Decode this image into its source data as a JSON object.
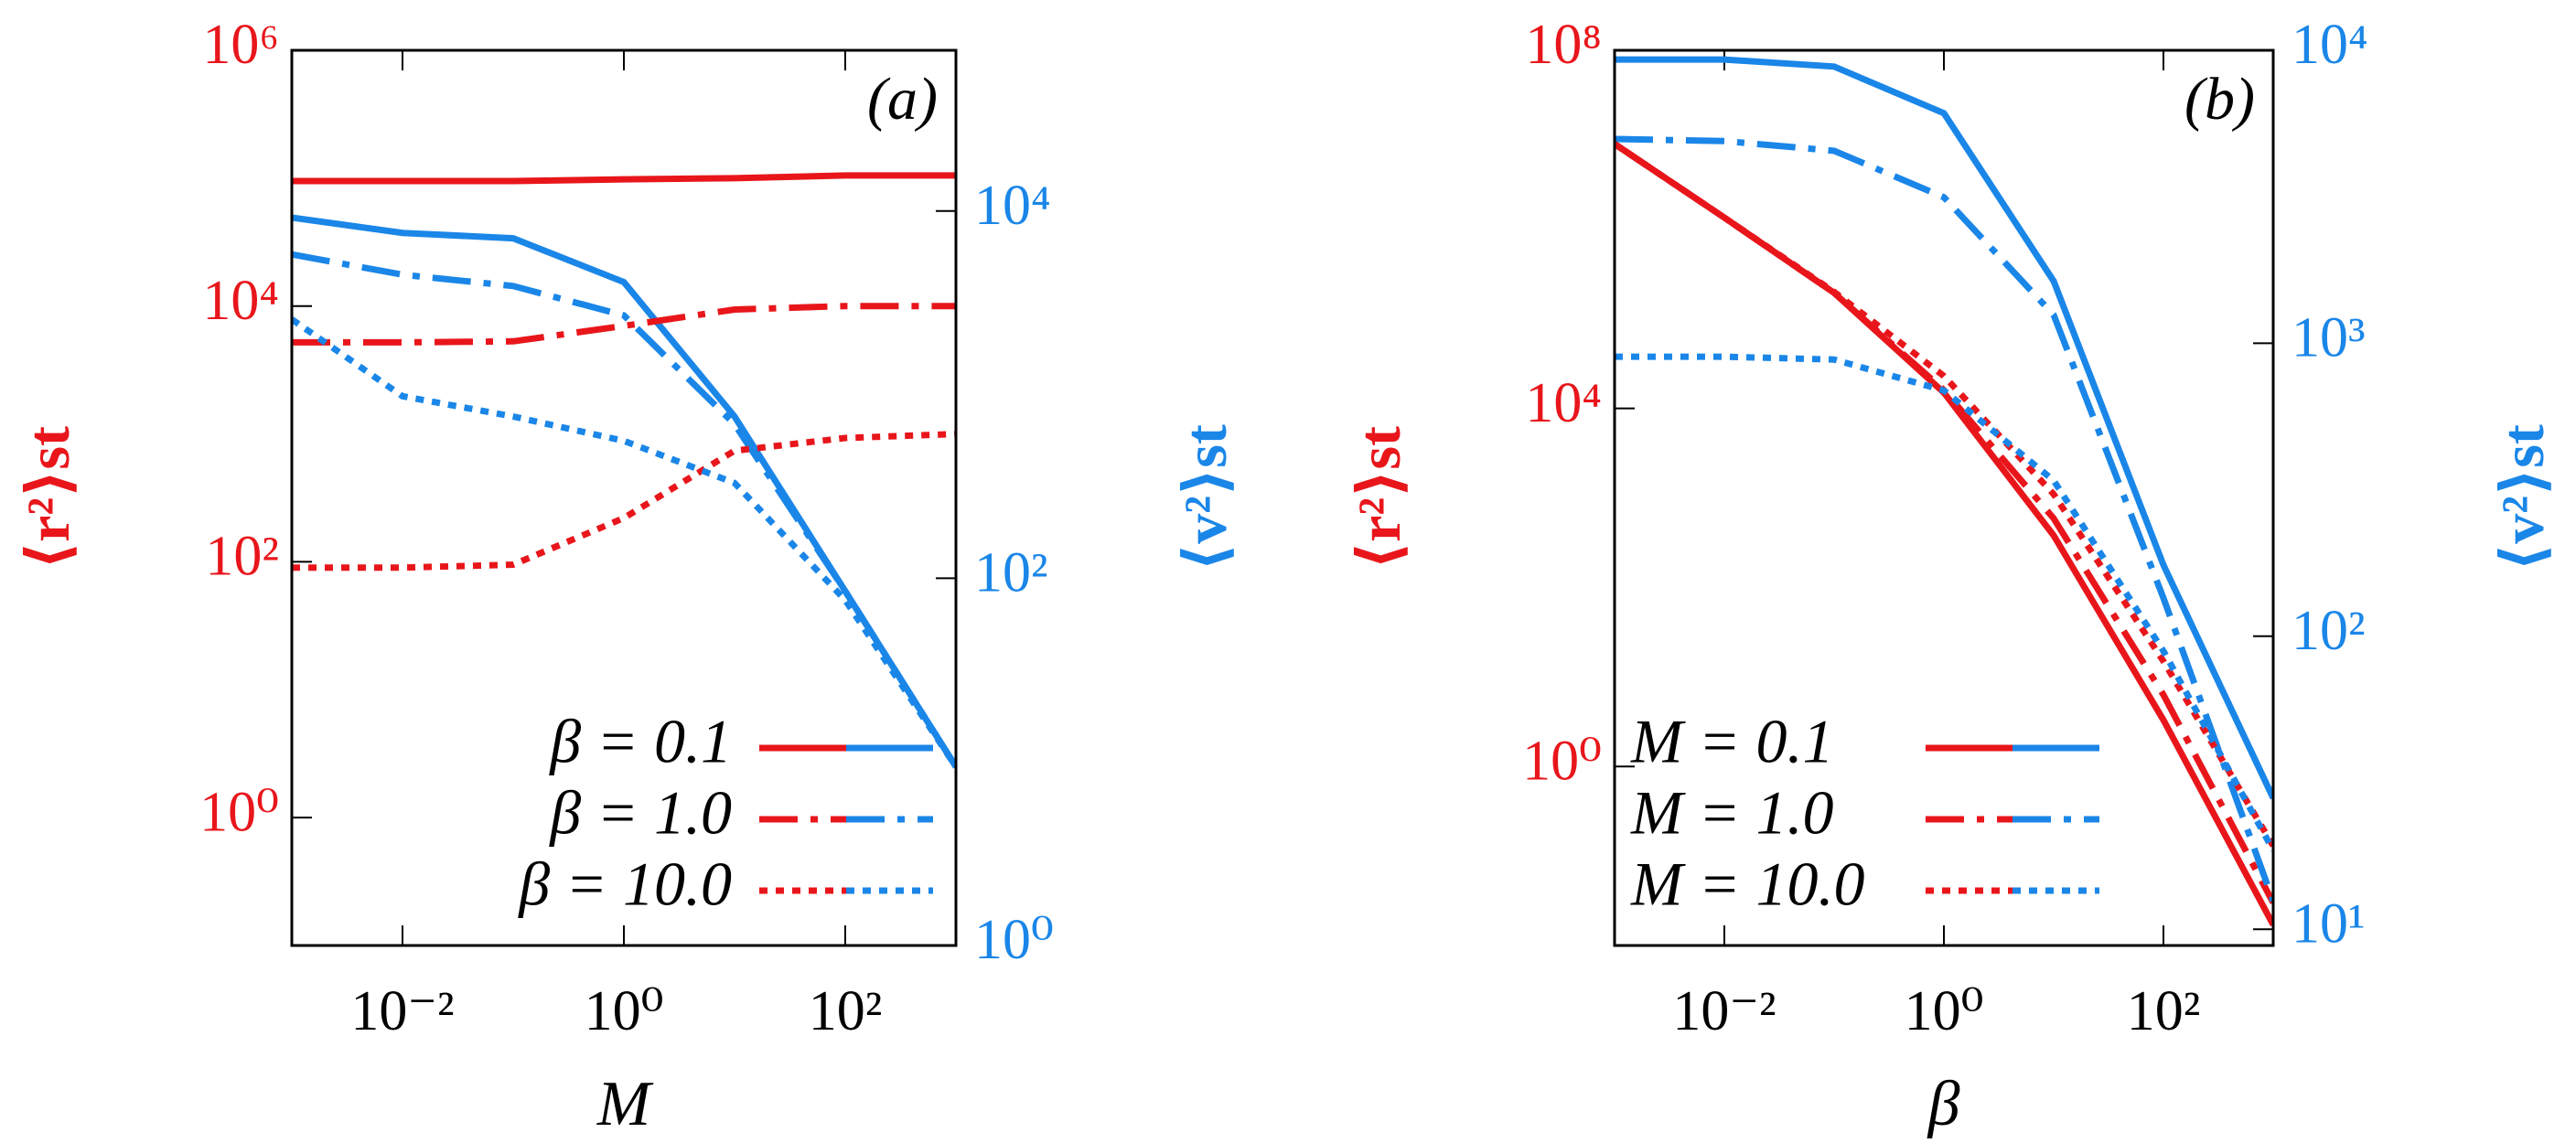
{
  "chart_data": [
    {
      "type": "line",
      "label": "(a)",
      "xlabel": "M",
      "ylabel": "⟨r²⟩st",
      "y2label": "⟨v²⟩st",
      "xlog": true,
      "ylog": true,
      "color": "#e8161b",
      "color2": "#1a86e8",
      "legend": "lower right",
      "x": [
        0.001,
        0.01,
        0.1,
        1,
        10,
        100,
        1000
      ],
      "xlim": [
        0.001,
        1000
      ],
      "ylim": [
        0.1,
        1000000
      ],
      "y2lim": [
        1,
        75000
      ],
      "xticks": [
        {
          "value": 0.01,
          "label": "10⁻²"
        },
        {
          "value": 1,
          "label": "10⁰"
        },
        {
          "value": 100,
          "label": "10²"
        }
      ],
      "yticks": [
        {
          "value": 1,
          "label": "10⁰"
        },
        {
          "value": 100,
          "label": "10²"
        },
        {
          "value": 10000,
          "label": "10⁴"
        },
        {
          "value": 1000000,
          "label": "10⁶"
        }
      ],
      "y2ticks": [
        {
          "value": 1,
          "label": "10⁰"
        },
        {
          "value": 100,
          "label": "10²"
        },
        {
          "value": 10000,
          "label": "10⁴"
        }
      ],
      "series": [
        {
          "name": "β = 0.1",
          "dash": "solid",
          "values": [
            95000,
            95000,
            95000,
            98000,
            100000,
            105000,
            105000
          ],
          "values2": [
            9200,
            7600,
            7100,
            4100,
            760,
            85,
            9.4
          ]
        },
        {
          "name": "β = 1.0",
          "dash": "dashdot",
          "values": [
            5200,
            5200,
            5300,
            7000,
            9400,
            10000,
            10000
          ],
          "values2": [
            5800,
            4500,
            3900,
            2700,
            690,
            85,
            9.4
          ]
        },
        {
          "name": "β = 10.0",
          "dash": "dotted",
          "values": [
            90,
            90,
            95,
            220,
            740,
            930,
            1000
          ],
          "values2": [
            2570,
            980,
            760,
            560,
            330,
            76,
            9.4
          ]
        }
      ]
    },
    {
      "type": "line",
      "label": "(b)",
      "xlabel": "β",
      "ylabel": "⟨r²⟩st",
      "y2label": "⟨v²⟩st",
      "xlog": true,
      "ylog": true,
      "color": "#e8161b",
      "color2": "#1a86e8",
      "legend": "lower left",
      "x": [
        0.001,
        0.01,
        0.1,
        1,
        10,
        100,
        1000
      ],
      "xlim": [
        0.001,
        1000
      ],
      "ylim": [
        0.01,
        100000000
      ],
      "y2lim": [
        8.8,
        10000
      ],
      "xticks": [
        {
          "value": 0.01,
          "label": "10⁻²"
        },
        {
          "value": 1,
          "label": "10⁰"
        },
        {
          "value": 100,
          "label": "10²"
        }
      ],
      "yticks": [
        {
          "value": 1,
          "label": "10⁰"
        },
        {
          "value": 10000,
          "label": "10⁴"
        },
        {
          "value": 100000000,
          "label": "10⁸"
        }
      ],
      "y2ticks": [
        {
          "value": 10,
          "label": "10¹"
        },
        {
          "value": 100,
          "label": "10²"
        },
        {
          "value": 1000,
          "label": "10³"
        },
        {
          "value": 10000,
          "label": "10⁴"
        }
      ],
      "series": [
        {
          "name": "M = 0.1",
          "dash": "solid",
          "values": [
            9000000,
            1350000,
            195000,
            15000,
            380,
            3.3,
            0.017
          ],
          "values2": [
            9300,
            9300,
            8800,
            6100,
            1630,
            175,
            28
          ]
        },
        {
          "name": "M = 1.0",
          "dash": "dashdot",
          "values": [
            9000000,
            1350000,
            195000,
            16000,
            590,
            6.3,
            0.03
          ],
          "values2": [
            4980,
            4900,
            4540,
            3150,
            1250,
            135,
            12.5
          ]
        },
        {
          "name": "M = 10.0",
          "dash": "dotted",
          "values": [
            9000000,
            1350000,
            200000,
            23000,
            1100,
            15,
            0.13
          ],
          "values2": [
            900,
            900,
            880,
            690,
            340,
            89,
            18.6
          ]
        }
      ]
    }
  ]
}
